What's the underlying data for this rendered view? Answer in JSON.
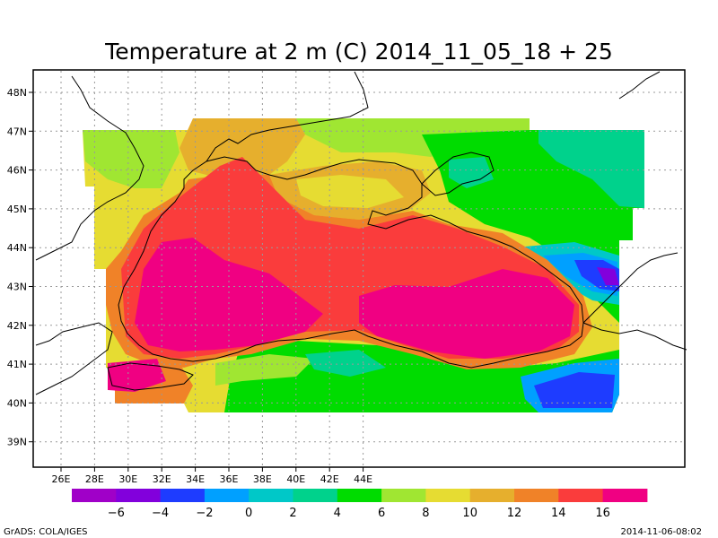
{
  "title": "Temperature at 2 m (C) 2014_11_05_18 + 25",
  "footer_left": "GrADS: COLA/IGES",
  "footer_right": "2014-11-06-08:02",
  "lon_ticks": [
    "26E",
    "28E",
    "30E",
    "32E",
    "34E",
    "36E",
    "38E",
    "40E",
    "42E",
    "44E"
  ],
  "lat_ticks": [
    "48N",
    "47N",
    "46N",
    "45N",
    "44N",
    "43N",
    "42N",
    "41N",
    "40N",
    "39N"
  ],
  "colorbar": {
    "colors": [
      "#a000c8",
      "#8200dc",
      "#1e3cff",
      "#00a0ff",
      "#00c8c8",
      "#00d28c",
      "#00dc00",
      "#a0e632",
      "#e6dc32",
      "#e6af2d",
      "#f08228",
      "#fa3c3c",
      "#f00082"
    ],
    "labels": [
      "−6",
      "−4",
      "−2",
      "0",
      "2",
      "4",
      "6",
      "8",
      "10",
      "12",
      "14",
      "16"
    ]
  },
  "grid": true
}
